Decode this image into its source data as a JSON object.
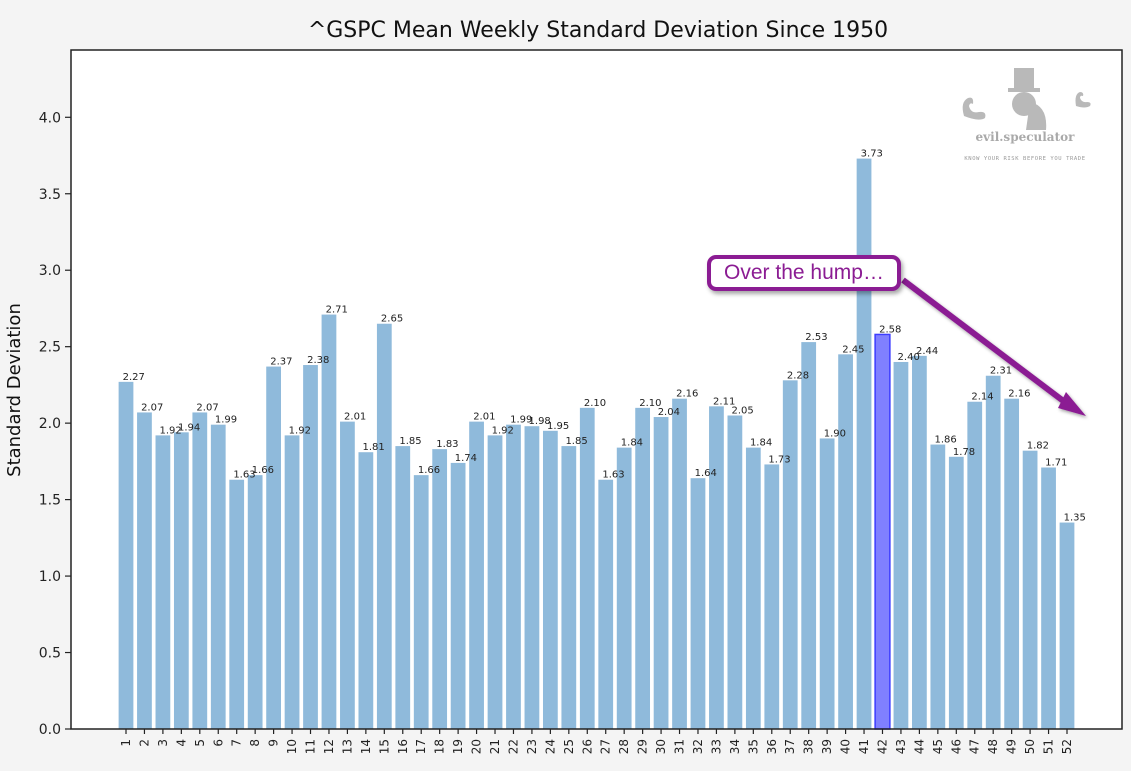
{
  "chart_data": {
    "type": "bar",
    "title": "^GSPC Mean Weekly Standard Deviation Since 1950",
    "xlabel": "",
    "ylabel": "Standard Deviation",
    "ylim": [
      0,
      4.44
    ],
    "yticks": [
      "0.0",
      "0.5",
      "1.0",
      "1.5",
      "2.0",
      "2.5",
      "3.0",
      "3.5",
      "4.0"
    ],
    "ytick_values": [
      0,
      0.5,
      1.0,
      1.5,
      2.0,
      2.5,
      3.0,
      3.5,
      4.0
    ],
    "grid": false,
    "categories": [
      "1",
      "2",
      "3",
      "4",
      "5",
      "6",
      "7",
      "8",
      "9",
      "10",
      "11",
      "12",
      "13",
      "14",
      "15",
      "16",
      "17",
      "18",
      "19",
      "20",
      "21",
      "22",
      "23",
      "24",
      "25",
      "26",
      "27",
      "28",
      "29",
      "30",
      "31",
      "32",
      "33",
      "34",
      "35",
      "36",
      "37",
      "38",
      "39",
      "40",
      "41",
      "42",
      "43",
      "44",
      "45",
      "46",
      "47",
      "48",
      "49",
      "50",
      "51",
      "52"
    ],
    "values": [
      2.27,
      2.07,
      1.92,
      1.94,
      2.07,
      1.99,
      1.63,
      1.66,
      2.37,
      1.92,
      2.38,
      2.71,
      2.01,
      1.81,
      2.65,
      1.85,
      1.66,
      1.83,
      1.74,
      2.01,
      1.92,
      1.99,
      1.98,
      1.95,
      1.85,
      2.1,
      1.63,
      1.84,
      2.1,
      2.04,
      2.16,
      1.64,
      2.11,
      2.05,
      1.84,
      1.73,
      2.28,
      2.53,
      1.9,
      2.45,
      3.73,
      2.58,
      2.4,
      2.44,
      1.86,
      1.78,
      2.14,
      2.31,
      2.16,
      1.82,
      1.71,
      1.35
    ],
    "data_labels": [
      "2.27",
      "2.07",
      "1.92",
      "1.94",
      "2.07",
      "1.99",
      "1.63",
      "1.66",
      "2.37",
      "1.92",
      "2.38",
      "2.71",
      "2.01",
      "1.81",
      "2.65",
      "1.85",
      "1.66",
      "1.83",
      "1.74",
      "2.01",
      "1.92",
      "1.99",
      "1.98",
      "1.95",
      "1.85",
      "2.10",
      "1.63",
      "1.84",
      "2.10",
      "2.04",
      "2.16",
      "1.64",
      "2.11",
      "2.05",
      "1.84",
      "1.73",
      "2.28",
      "2.53",
      "1.90",
      "2.45",
      "3.73",
      "2.58",
      "2.40",
      "2.44",
      "1.86",
      "1.78",
      "2.14",
      "2.31",
      "2.16",
      "1.82",
      "1.71",
      "1.35"
    ],
    "highlighted_category": "42",
    "colors": {
      "bar": "#8fbadb",
      "highlight_bar": "#8080ff",
      "highlight_edge": "#3d3dff",
      "highlight_tick": "#2222dd",
      "annotation": "#8b1c93"
    },
    "annotation": {
      "text": "Over the hump…",
      "arrow_direction": "down-right"
    },
    "watermark": {
      "name": "evil.speculator",
      "tagline": "KNOW YOUR RISK BEFORE YOU TRADE"
    }
  }
}
